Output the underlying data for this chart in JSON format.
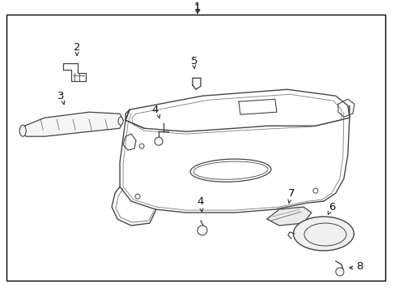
{
  "bg_color": "#ffffff",
  "border_color": "#000000",
  "line_color": "#444444",
  "figsize": [
    4.89,
    3.6
  ],
  "dpi": 100,
  "arrow_color": "#333333",
  "text_color": "#111111",
  "font_size": 9.5
}
